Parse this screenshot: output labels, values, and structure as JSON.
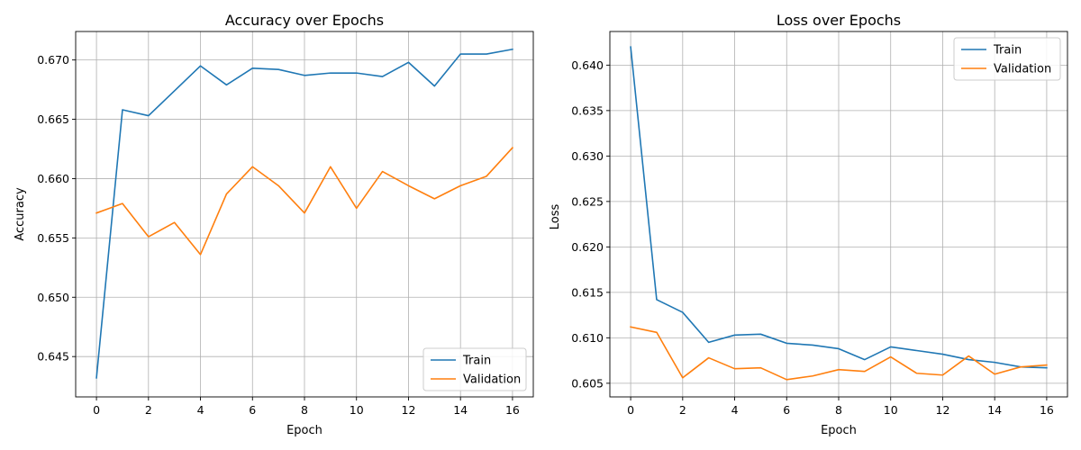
{
  "chart_data": [
    {
      "type": "line",
      "title": "Accuracy over Epochs",
      "xlabel": "Epoch",
      "ylabel": "Accuracy",
      "xlim": [
        -0.8,
        16.8
      ],
      "ylim": [
        0.6416,
        0.6724
      ],
      "xticks": [
        0,
        2,
        4,
        6,
        8,
        10,
        12,
        14,
        16
      ],
      "xtick_labels": [
        "0",
        "2",
        "4",
        "6",
        "8",
        "10",
        "12",
        "14",
        "16"
      ],
      "yticks": [
        0.645,
        0.65,
        0.655,
        0.66,
        0.665,
        0.67
      ],
      "ytick_labels": [
        "0.645",
        "0.650",
        "0.655",
        "0.660",
        "0.665",
        "0.670"
      ],
      "grid": true,
      "legend_position": "lower-right",
      "x": [
        0,
        1,
        2,
        3,
        4,
        5,
        6,
        7,
        8,
        9,
        10,
        11,
        12,
        13,
        14,
        15,
        16
      ],
      "series": [
        {
          "name": "Train",
          "color": "#1f77b4",
          "values": [
            0.6432,
            0.6658,
            0.6653,
            0.6674,
            0.6695,
            0.6679,
            0.6693,
            0.6692,
            0.6687,
            0.6689,
            0.6689,
            0.6686,
            0.6698,
            0.6678,
            0.6705,
            0.6705,
            0.6709
          ]
        },
        {
          "name": "Validation",
          "color": "#ff7f0e",
          "values": [
            0.6571,
            0.6579,
            0.6551,
            0.6563,
            0.6536,
            0.6587,
            0.661,
            0.6594,
            0.6571,
            0.661,
            0.6575,
            0.6606,
            0.6594,
            0.6583,
            0.6594,
            0.6602,
            0.6626
          ]
        }
      ]
    },
    {
      "type": "line",
      "title": "Loss over Epochs",
      "xlabel": "Epoch",
      "ylabel": "Loss",
      "xlim": [
        -0.8,
        16.8
      ],
      "ylim": [
        0.6035,
        0.6437
      ],
      "xticks": [
        0,
        2,
        4,
        6,
        8,
        10,
        12,
        14,
        16
      ],
      "xtick_labels": [
        "0",
        "2",
        "4",
        "6",
        "8",
        "10",
        "12",
        "14",
        "16"
      ],
      "yticks": [
        0.605,
        0.61,
        0.615,
        0.62,
        0.625,
        0.63,
        0.635,
        0.64
      ],
      "ytick_labels": [
        "0.605",
        "0.610",
        "0.615",
        "0.620",
        "0.625",
        "0.630",
        "0.635",
        "0.640"
      ],
      "grid": true,
      "legend_position": "upper-right",
      "x": [
        0,
        1,
        2,
        3,
        4,
        5,
        6,
        7,
        8,
        9,
        10,
        11,
        12,
        13,
        14,
        15,
        16
      ],
      "series": [
        {
          "name": "Train",
          "color": "#1f77b4",
          "values": [
            0.642,
            0.6142,
            0.6128,
            0.6095,
            0.6103,
            0.6104,
            0.6094,
            0.6092,
            0.6088,
            0.6076,
            0.609,
            0.6086,
            0.6082,
            0.6076,
            0.6073,
            0.6068,
            0.6067
          ]
        },
        {
          "name": "Validation",
          "color": "#ff7f0e",
          "values": [
            0.6112,
            0.6106,
            0.6056,
            0.6078,
            0.6066,
            0.6067,
            0.6054,
            0.6058,
            0.6065,
            0.6063,
            0.6079,
            0.6061,
            0.6059,
            0.608,
            0.606,
            0.6068,
            0.607
          ]
        }
      ]
    }
  ]
}
